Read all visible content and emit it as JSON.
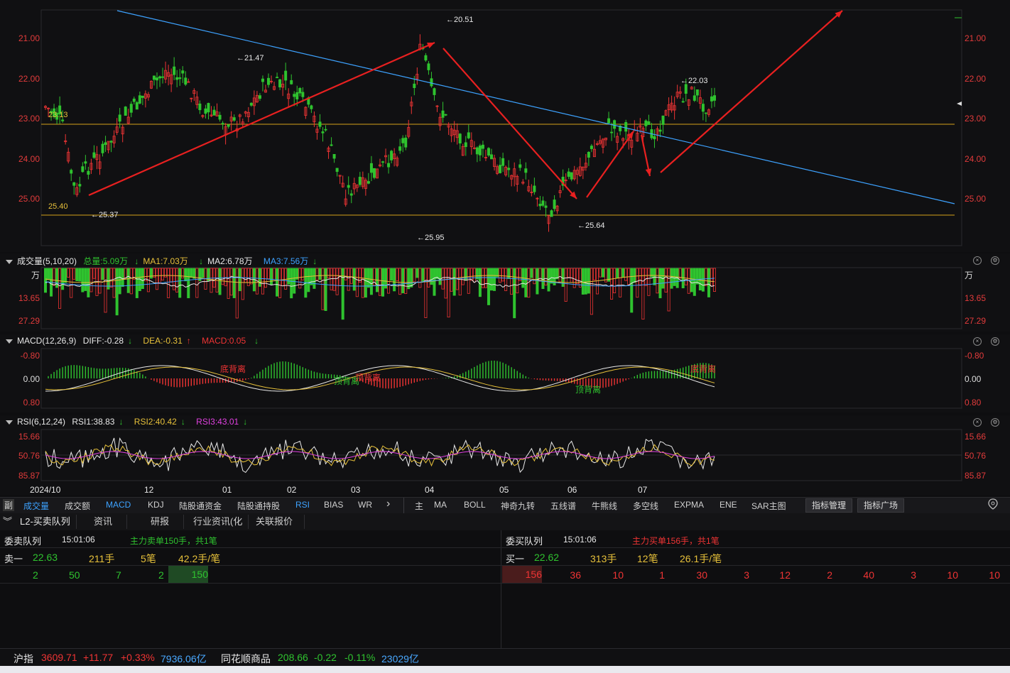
{
  "price_axis": {
    "labels": [
      "21.00",
      "22.00",
      "23.00",
      "24.00",
      "25.00"
    ],
    "ref_line_upper": "23.13",
    "ref_line_lower": "25.40"
  },
  "price_annotations": {
    "high_top": "20.51",
    "high_left": "21.47",
    "high_right": "22.03",
    "low_left": "25.37",
    "low_mid": "25.95",
    "low_right": "25.64"
  },
  "volume": {
    "title": "成交量(5,10,20)",
    "total": "总量:5.09万",
    "ma1": "MA1:7.03万",
    "ma2": "MA2:6.78万",
    "ma3": "MA3:7.56万",
    "axis": [
      "万",
      "13.65",
      "27.29"
    ]
  },
  "macd": {
    "title": "MACD(12,26,9)",
    "diff": "DIFF:-0.28",
    "dea": "DEA:-0.31",
    "macd": "MACD:0.05",
    "axis": [
      "-0.80",
      "0.00",
      "0.80"
    ],
    "annotations": [
      "底背离",
      "顶背离",
      "顶背离",
      "顶背离",
      "底背离"
    ]
  },
  "rsi": {
    "title": "RSI(6,12,24)",
    "rsi1": "RSI1:38.83",
    "rsi2": "RSI2:40.42",
    "rsi3": "RSI3:43.01",
    "axis": [
      "15.66",
      "50.76",
      "85.87"
    ]
  },
  "time_axis": [
    "2024/10",
    "12",
    "01",
    "02",
    "03",
    "04",
    "05",
    "06",
    "07"
  ],
  "indicator_tabs": {
    "side_label": "副",
    "items": [
      "成交量",
      "成交额",
      "MACD",
      "KDJ",
      "陆股通资金",
      "陆股通持股",
      "RSI",
      "BIAS",
      "WR"
    ],
    "more": "›",
    "main_label": "主",
    "main_items": [
      "MA",
      "BOLL",
      "神奇九转",
      "五线谱",
      "牛熊线",
      "多空线",
      "EXPMA",
      "ENE",
      "SAR主图"
    ],
    "manage_button": "指标管理",
    "square_button": "指标广场"
  },
  "sub_tabs": [
    "L2-买卖队列",
    "资讯",
    "研报",
    "行业资讯(化",
    "关联报价"
  ],
  "sell_queue": {
    "title": "委卖队列",
    "time": "15:01:06",
    "main_order": "主力卖单150手，共1笔",
    "level_label": "卖一",
    "price": "22.63",
    "volume": "211手",
    "orders": "5笔",
    "avg": "42.2手/笔",
    "queue": [
      "2",
      "50",
      "7",
      "2",
      "150"
    ]
  },
  "buy_queue": {
    "title": "委买队列",
    "time": "15:01:06",
    "main_order": "主力买单156手，共1笔",
    "level_label": "买一",
    "price": "22.62",
    "volume": "313手",
    "orders": "12笔",
    "avg": "26.1手/笔",
    "queue": [
      "156",
      "36",
      "10",
      "1",
      "30",
      "3",
      "12",
      "2",
      "40",
      "3",
      "10",
      "10"
    ]
  },
  "status_bar": {
    "idx1_name": "沪指",
    "idx1_value": "3609.71",
    "idx1_change": "+11.77",
    "idx1_pct": "+0.33%",
    "idx1_amount": "7936.06亿",
    "idx2_name": "同花顺商品",
    "idx2_value": "208.66",
    "idx2_change": "-0.22",
    "idx2_pct": "-0.11%",
    "idx2_amount": "23029亿"
  },
  "colors": {
    "up": "#ef3434",
    "down": "#2fc32f",
    "ma1": "#e6c03a",
    "trend": "#3da2ff",
    "arrow": "#e82020"
  }
}
